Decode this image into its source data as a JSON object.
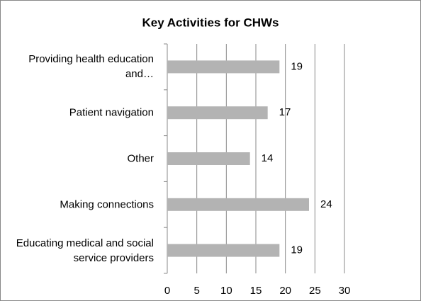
{
  "chart_data": {
    "type": "bar",
    "orientation": "horizontal",
    "title": "Key Activities for CHWs",
    "categories": [
      "Providing health education and…",
      "Patient navigation",
      "Other",
      "Making connections",
      "Educating medical and social service providers"
    ],
    "values": [
      19,
      17,
      14,
      24,
      19
    ],
    "color": "#b3b3b3",
    "xlim": [
      0,
      30
    ],
    "xticks": [
      0,
      5,
      10,
      15,
      20,
      25,
      30
    ],
    "grid": true
  }
}
